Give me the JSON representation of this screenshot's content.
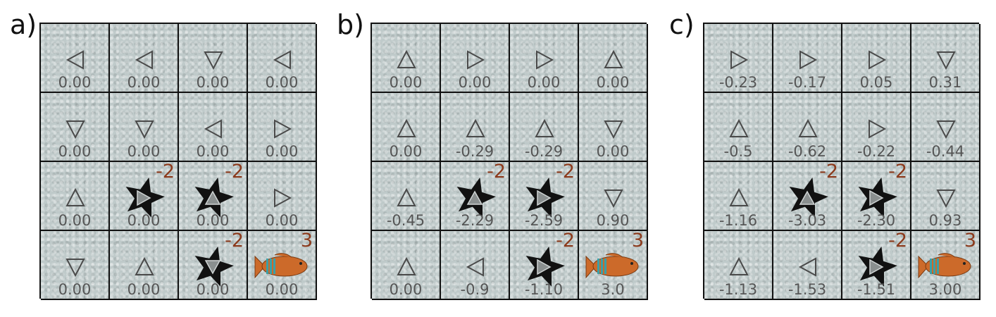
{
  "panels": [
    {
      "label": "a)",
      "cells": [
        [
          {
            "dir": "left",
            "value": "0.00"
          },
          {
            "dir": "left",
            "value": "0.00"
          },
          {
            "dir": "down",
            "value": "0.00"
          },
          {
            "dir": "left",
            "value": "0.00"
          }
        ],
        [
          {
            "dir": "down",
            "value": "0.00"
          },
          {
            "dir": "down",
            "value": "0.00"
          },
          {
            "dir": "left",
            "value": "0.00"
          },
          {
            "dir": "right",
            "value": "0.00"
          }
        ],
        [
          {
            "dir": "up",
            "value": "0.00"
          },
          {
            "dir": "right",
            "value": "0.00",
            "type": "star",
            "reward": "-2"
          },
          {
            "dir": "up",
            "value": "0.00",
            "type": "star",
            "reward": "-2"
          },
          {
            "dir": "right",
            "value": "0.00"
          }
        ],
        [
          {
            "dir": "down",
            "value": "0.00"
          },
          {
            "dir": "up",
            "value": "0.00"
          },
          {
            "dir": "down",
            "value": "0.00",
            "type": "star",
            "reward": "-2"
          },
          {
            "value": "0.00",
            "type": "fish",
            "reward": "3"
          }
        ]
      ]
    },
    {
      "label": "b)",
      "cells": [
        [
          {
            "dir": "up",
            "value": "0.00"
          },
          {
            "dir": "right",
            "value": "0.00"
          },
          {
            "dir": "right",
            "value": "0.00"
          },
          {
            "dir": "up",
            "value": "0.00"
          }
        ],
        [
          {
            "dir": "up",
            "value": "0.00"
          },
          {
            "dir": "up",
            "value": "-0.29"
          },
          {
            "dir": "up",
            "value": "-0.29"
          },
          {
            "dir": "down",
            "value": "0.00"
          }
        ],
        [
          {
            "dir": "up",
            "value": "-0.45"
          },
          {
            "dir": "up",
            "value": "-2.29",
            "type": "star",
            "reward": "-2"
          },
          {
            "dir": "right",
            "value": "-2.59",
            "type": "star",
            "reward": "-2"
          },
          {
            "dir": "down",
            "value": "0.90"
          }
        ],
        [
          {
            "dir": "up",
            "value": "0.00"
          },
          {
            "dir": "left",
            "value": "-0.9"
          },
          {
            "dir": "right",
            "value": "-1.10",
            "type": "star",
            "reward": "-2"
          },
          {
            "value": "3.0",
            "type": "fish",
            "reward": "3"
          }
        ]
      ]
    },
    {
      "label": "c)",
      "cells": [
        [
          {
            "dir": "right",
            "value": "-0.23"
          },
          {
            "dir": "right",
            "value": "-0.17"
          },
          {
            "dir": "right",
            "value": "0.05"
          },
          {
            "dir": "down",
            "value": "0.31"
          }
        ],
        [
          {
            "dir": "up",
            "value": "-0.5"
          },
          {
            "dir": "up",
            "value": "-0.62"
          },
          {
            "dir": "right",
            "value": "-0.22"
          },
          {
            "dir": "down",
            "value": "-0.44"
          }
        ],
        [
          {
            "dir": "up",
            "value": "-1.16"
          },
          {
            "dir": "up",
            "value": "-3.03",
            "type": "star",
            "reward": "-2"
          },
          {
            "dir": "right",
            "value": "-2.30",
            "type": "star",
            "reward": "-2"
          },
          {
            "dir": "down",
            "value": "0.93"
          }
        ],
        [
          {
            "dir": "up",
            "value": "-1.13"
          },
          {
            "dir": "left",
            "value": "-1.53"
          },
          {
            "dir": "right",
            "value": "-1.51",
            "type": "star",
            "reward": "-2"
          },
          {
            "value": "3.00",
            "type": "fish",
            "reward": "3"
          }
        ]
      ]
    }
  ],
  "colors": {
    "cell_bg": "#bfcaca",
    "value_text": "#555555",
    "reward_text": "#8b3a1c",
    "arrow_stroke": "#4a4a4a",
    "star_fill": "#111111",
    "fish_body": "#cc6a2a",
    "fish_stripe": "#3aa0a8"
  }
}
